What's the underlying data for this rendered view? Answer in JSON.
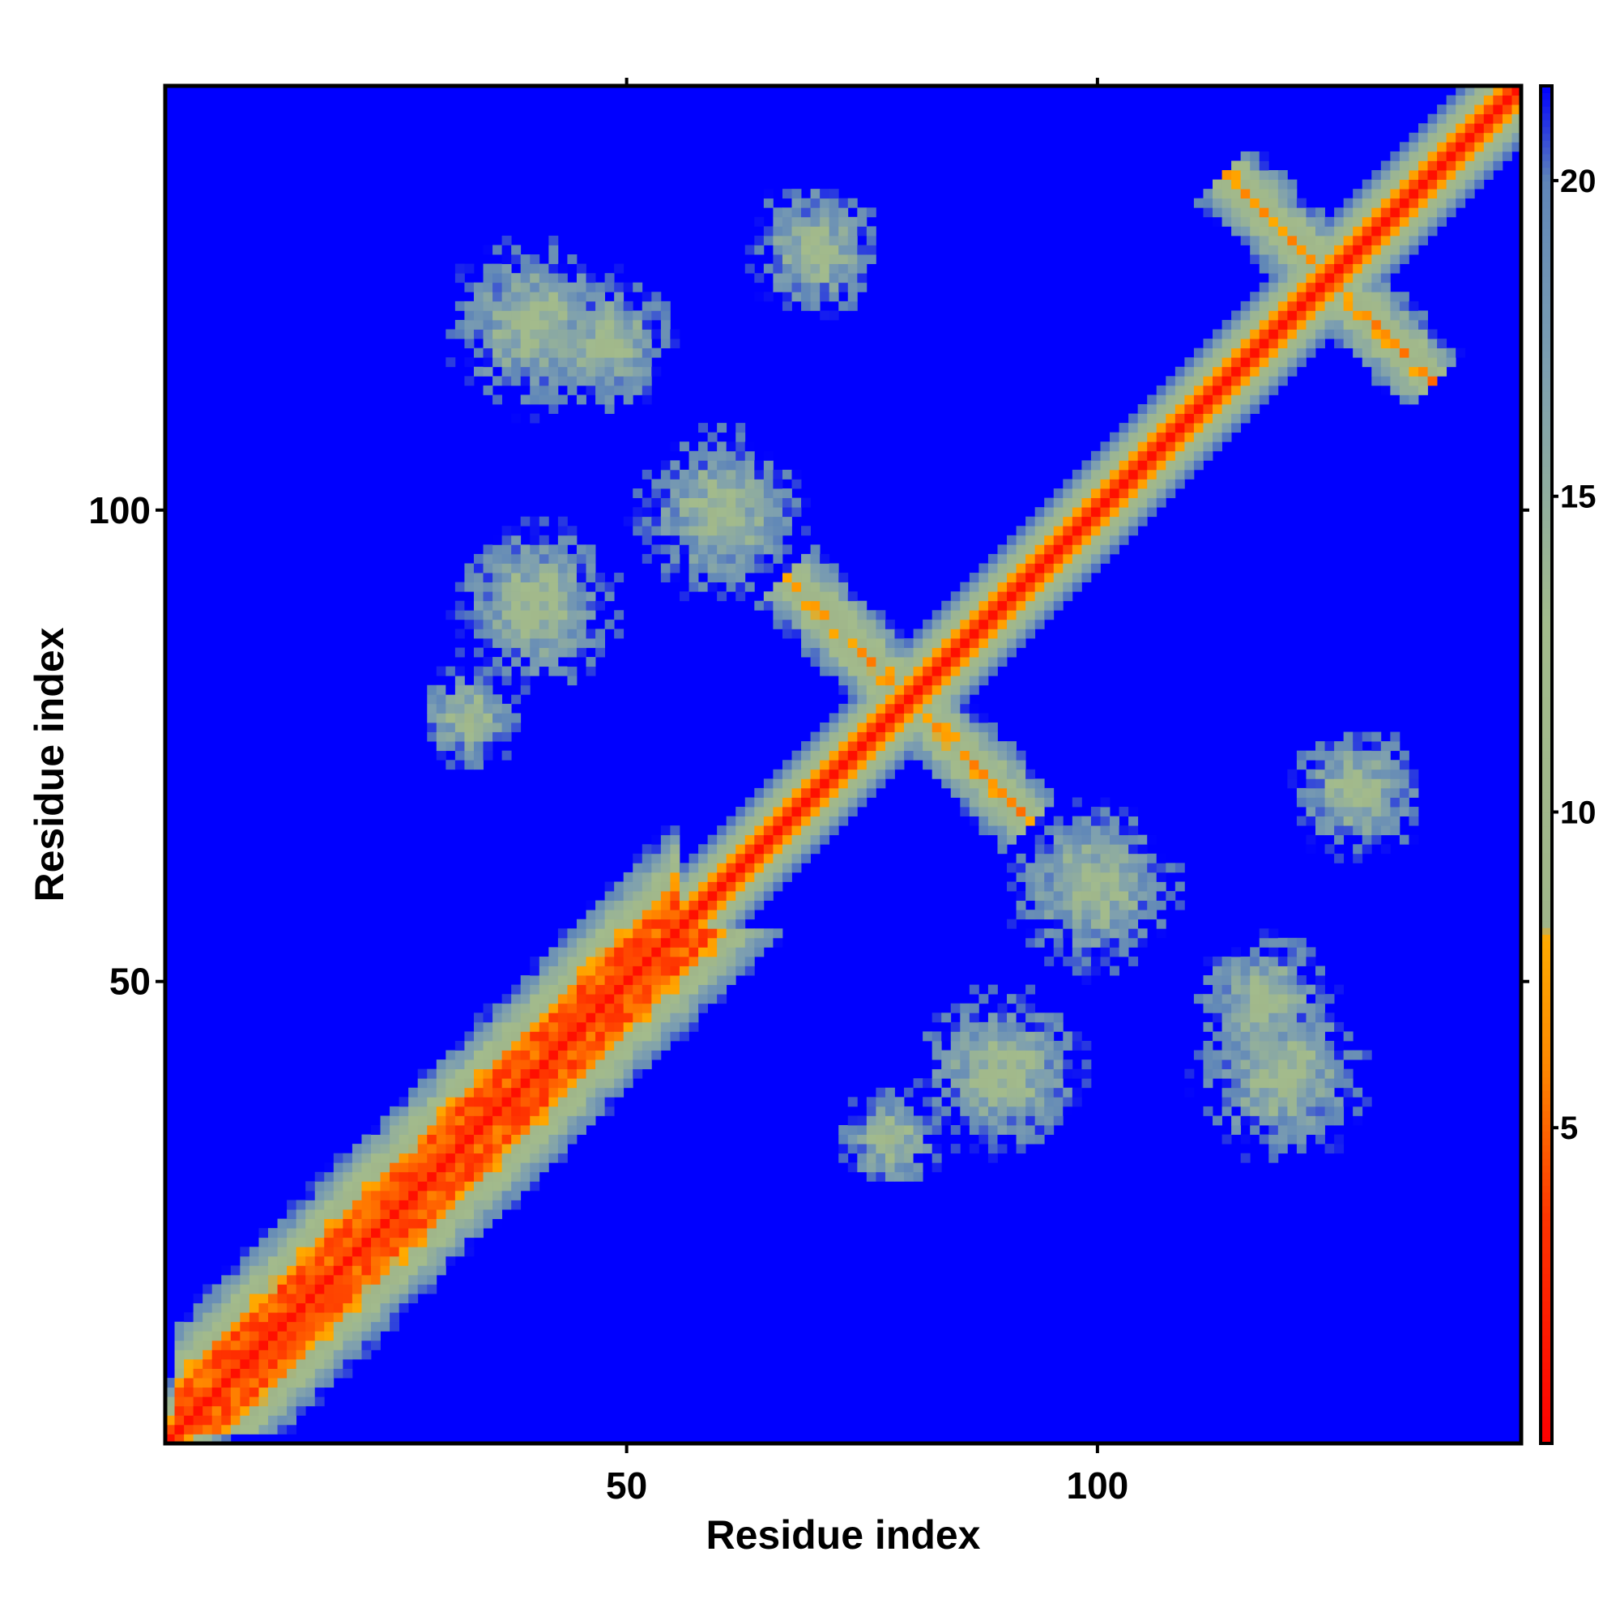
{
  "chart_data": {
    "type": "heatmap",
    "title": "",
    "xlabel": "Residue index",
    "ylabel": "Residue index",
    "n_residues": 145,
    "xlim": [
      1,
      145
    ],
    "ylim": [
      1,
      145
    ],
    "x_ticks": [
      50,
      100
    ],
    "y_ticks": [
      50,
      100
    ],
    "colorbar": {
      "range": [
        0,
        21.5
      ],
      "ticks": [
        5,
        10,
        15,
        20
      ],
      "stops": [
        {
          "value": 0.0,
          "color": "#ff0000"
        },
        {
          "value": 3.5,
          "color": "#ff3300"
        },
        {
          "value": 6.0,
          "color": "#ff8800"
        },
        {
          "value": 8.0,
          "color": "#ffaa00"
        },
        {
          "value": 8.2,
          "color": "#9fb58a"
        },
        {
          "value": 13.0,
          "color": "#a3bb8c"
        },
        {
          "value": 17.0,
          "color": "#7d9fb0"
        },
        {
          "value": 20.0,
          "color": "#5f86b8"
        },
        {
          "value": 21.5,
          "color": "#0000ff"
        }
      ],
      "background_color": "#0000ff"
    },
    "features": [
      {
        "kind": "diagonal",
        "from": 1,
        "to": 145
      },
      {
        "kind": "band",
        "i_range": [
          2,
          55
        ],
        "offset": 4,
        "width": 5
      },
      {
        "kind": "antiparallel",
        "center": [
          80,
          80
        ],
        "length": 26
      },
      {
        "kind": "antiparallel",
        "center": [
          125,
          125
        ],
        "length": 22
      },
      {
        "kind": "contact_patch",
        "center": [
          60,
          100
        ],
        "spread": 10
      },
      {
        "kind": "contact_patch",
        "center": [
          90,
          40
        ],
        "spread": 10
      },
      {
        "kind": "contact_patch",
        "center": [
          118,
          48
        ],
        "spread": 8
      },
      {
        "kind": "contact_patch",
        "center": [
          40,
          120
        ],
        "spread": 10
      },
      {
        "kind": "contact_patch",
        "center": [
          33,
          78
        ],
        "spread": 6
      },
      {
        "kind": "contact_patch",
        "center": [
          128,
          70
        ],
        "spread": 8
      }
    ]
  }
}
